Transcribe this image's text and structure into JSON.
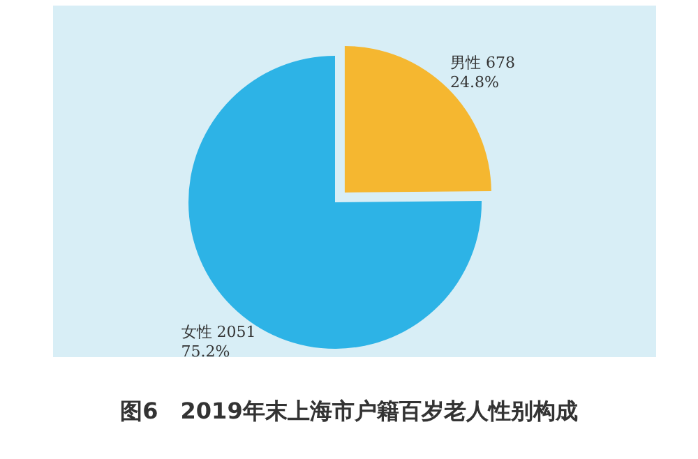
{
  "chart_data": {
    "type": "pie",
    "title": "图6　2019年末上海市户籍百岁老人性别构成",
    "categories": [
      "男性",
      "女性"
    ],
    "values": [
      678,
      2051
    ],
    "colors": [
      "#f5b730",
      "#2db3e6"
    ],
    "value_labels": [
      "678\n24.8%",
      "2051\n75.2%"
    ],
    "legend": false
  }
}
